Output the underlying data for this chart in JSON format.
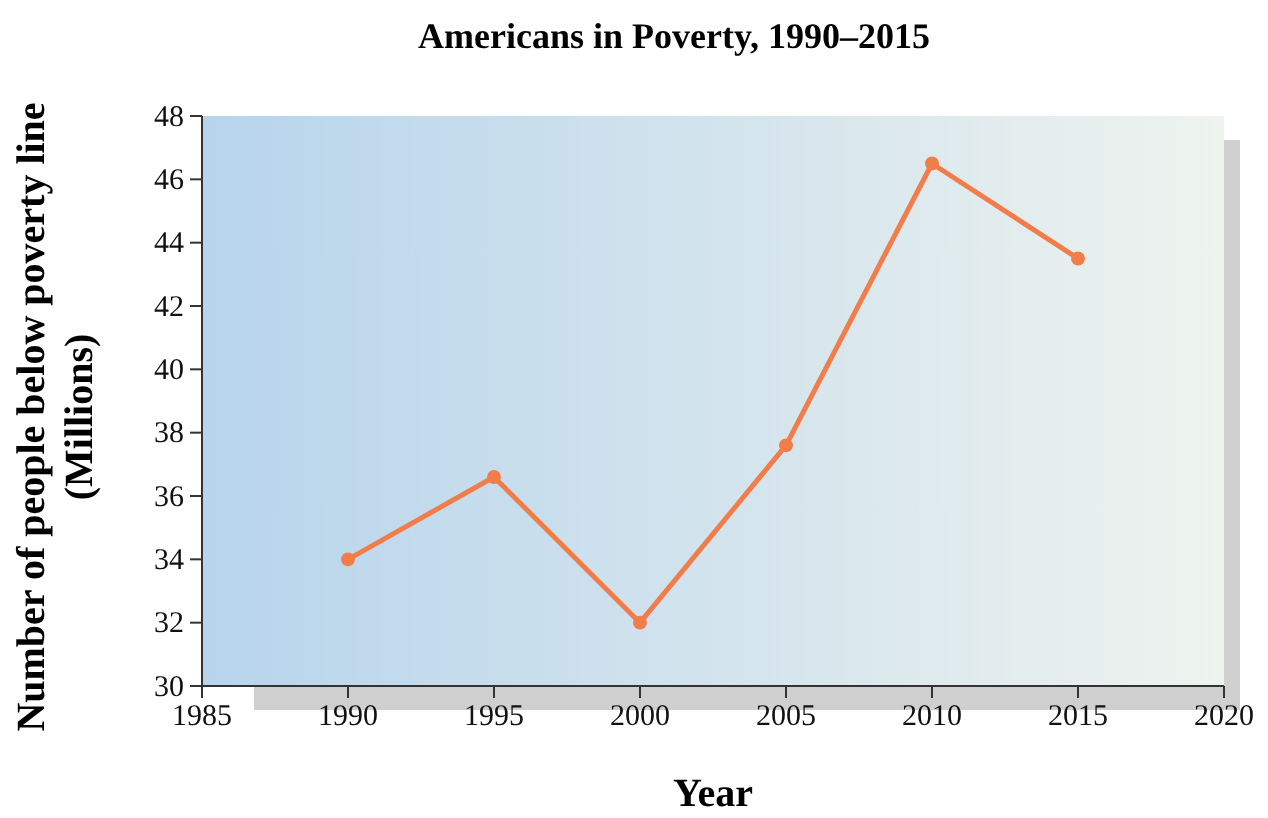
{
  "chart_data": {
    "type": "line",
    "title": "Americans in Poverty, 1990–2015",
    "xlabel": "Year",
    "ylabel": "Number of people below poverty line (Millions)",
    "x": [
      1990,
      1995,
      2000,
      2005,
      2010,
      2015
    ],
    "series": [
      {
        "color": "#f07d4a",
        "values": [
          34.0,
          36.6,
          32.0,
          37.6,
          46.5,
          43.5
        ]
      }
    ],
    "xlim": [
      1985,
      2020
    ],
    "xticks": [
      1985,
      1990,
      1995,
      2000,
      2005,
      2010,
      2015,
      2020
    ],
    "ylim": [
      30,
      48
    ],
    "yticks": [
      30,
      32,
      34,
      36,
      38,
      40,
      42,
      44,
      46,
      48
    ],
    "marker": "circle",
    "line_style": "solid",
    "grid": false
  }
}
